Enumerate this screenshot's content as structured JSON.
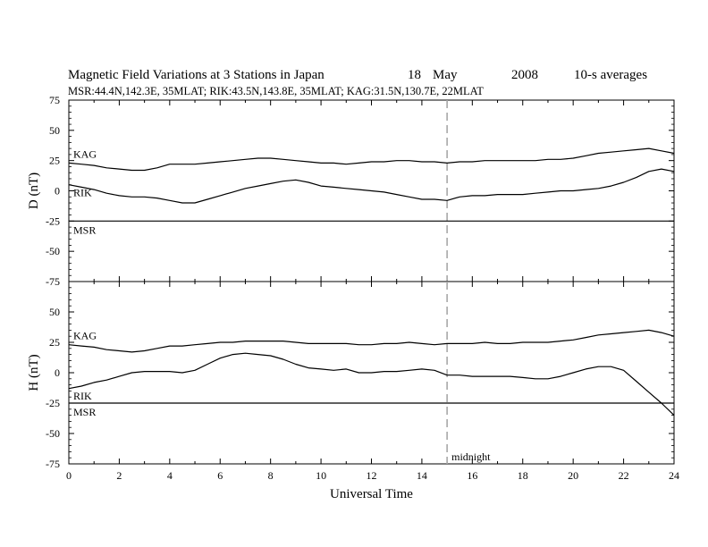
{
  "header": {
    "title": "Magnetic Field Variations at 3 Stations in Japan",
    "date_day": "18",
    "date_month": "May",
    "date_year": "2008",
    "averaging": "10-s averages",
    "stations_line": "MSR:44.4N,142.3E, 35MLAT;  RIK:43.5N,143.8E, 35MLAT;  KAG:31.5N,130.7E, 22MLAT"
  },
  "colors": {
    "line": "#000000",
    "midnight_marker": "#a8a8a8",
    "background": "#ffffff"
  },
  "chart_data": [
    {
      "type": "line",
      "panel": "top",
      "ylabel": "D (nT)",
      "xlabel": "",
      "xlim": [
        0,
        24
      ],
      "ylim": [
        -75,
        75
      ],
      "yticks": [
        "75",
        "50",
        "25",
        "0",
        "-25",
        "-50",
        "-75"
      ],
      "xticks": [],
      "marker_x": 15,
      "marker_label": "",
      "series": [
        {
          "name": "KAG",
          "x": [
            0,
            0.5,
            1,
            1.5,
            2,
            2.5,
            3,
            3.5,
            4,
            4.5,
            5,
            5.5,
            6,
            6.5,
            7,
            7.5,
            8,
            8.5,
            9,
            9.5,
            10,
            10.5,
            11,
            11.5,
            12,
            12.5,
            13,
            13.5,
            14,
            14.5,
            15,
            15.5,
            16,
            16.5,
            17,
            17.5,
            18,
            18.5,
            19,
            19.5,
            20,
            20.5,
            21,
            21.5,
            22,
            22.5,
            23,
            23.5,
            24
          ],
          "y": [
            23,
            22,
            21,
            19,
            18,
            17,
            17,
            19,
            22,
            22,
            22,
            23,
            24,
            25,
            26,
            27,
            27,
            26,
            25,
            24,
            23,
            23,
            22,
            23,
            24,
            24,
            25,
            25,
            24,
            24,
            23,
            24,
            24,
            25,
            25,
            25,
            25,
            25,
            26,
            26,
            27,
            29,
            31,
            32,
            33,
            34,
            35,
            33,
            31
          ]
        },
        {
          "name": "RIK",
          "x": [
            0,
            0.5,
            1,
            1.5,
            2,
            2.5,
            3,
            3.5,
            4,
            4.5,
            5,
            5.5,
            6,
            6.5,
            7,
            7.5,
            8,
            8.5,
            9,
            9.5,
            10,
            10.5,
            11,
            11.5,
            12,
            12.5,
            13,
            13.5,
            14,
            14.5,
            15,
            15.5,
            16,
            16.5,
            17,
            17.5,
            18,
            18.5,
            19,
            19.5,
            20,
            20.5,
            21,
            21.5,
            22,
            22.5,
            23,
            23.5,
            24
          ],
          "y": [
            5,
            3,
            1,
            -2,
            -4,
            -5,
            -5,
            -6,
            -8,
            -10,
            -10,
            -7,
            -4,
            -1,
            2,
            4,
            6,
            8,
            9,
            7,
            4,
            3,
            2,
            1,
            0,
            -1,
            -3,
            -5,
            -7,
            -7,
            -8,
            -5,
            -4,
            -4,
            -3,
            -3,
            -3,
            -2,
            -1,
            0,
            0,
            1,
            2,
            4,
            7,
            11,
            16,
            18,
            16
          ]
        },
        {
          "name": "MSR",
          "x": [
            0,
            24
          ],
          "y": [
            -25,
            -25
          ]
        }
      ]
    },
    {
      "type": "line",
      "panel": "bottom",
      "ylabel": "H (nT)",
      "xlabel": "Universal Time",
      "xlim": [
        0,
        24
      ],
      "ylim": [
        -75,
        75
      ],
      "yticks": [
        "50",
        "25",
        "0",
        "-25",
        "-50",
        "-75"
      ],
      "xticks": [
        "0",
        "2",
        "4",
        "6",
        "8",
        "10",
        "12",
        "14",
        "16",
        "18",
        "20",
        "22",
        "24"
      ],
      "marker_x": 15,
      "marker_label": "midnight",
      "series": [
        {
          "name": "KAG",
          "x": [
            0,
            0.5,
            1,
            1.5,
            2,
            2.5,
            3,
            3.5,
            4,
            4.5,
            5,
            5.5,
            6,
            6.5,
            7,
            7.5,
            8,
            8.5,
            9,
            9.5,
            10,
            10.5,
            11,
            11.5,
            12,
            12.5,
            13,
            13.5,
            14,
            14.5,
            15,
            15.5,
            16,
            16.5,
            17,
            17.5,
            18,
            18.5,
            19,
            19.5,
            20,
            20.5,
            21,
            21.5,
            22,
            22.5,
            23,
            23.5,
            24
          ],
          "y": [
            23,
            22,
            21,
            19,
            18,
            17,
            18,
            20,
            22,
            22,
            23,
            24,
            25,
            25,
            26,
            26,
            26,
            26,
            25,
            24,
            24,
            24,
            24,
            23,
            23,
            24,
            24,
            25,
            24,
            23,
            24,
            24,
            24,
            25,
            24,
            24,
            25,
            25,
            25,
            26,
            27,
            29,
            31,
            32,
            33,
            34,
            35,
            33,
            30
          ]
        },
        {
          "name": "RIK",
          "x": [
            0,
            0.5,
            1,
            1.5,
            2,
            2.5,
            3,
            3.5,
            4,
            4.5,
            5,
            5.5,
            6,
            6.5,
            7,
            7.5,
            8,
            8.5,
            9,
            9.5,
            10,
            10.5,
            11,
            11.5,
            12,
            12.5,
            13,
            13.5,
            14,
            14.5,
            15,
            15.5,
            16,
            16.5,
            17,
            17.5,
            18,
            18.5,
            19,
            19.5,
            20,
            20.5,
            21,
            21.5,
            22,
            22.5,
            23,
            23.5,
            24
          ],
          "y": [
            -13,
            -11,
            -8,
            -6,
            -3,
            0,
            1,
            1,
            1,
            0,
            2,
            7,
            12,
            15,
            16,
            15,
            14,
            11,
            7,
            4,
            3,
            2,
            3,
            0,
            0,
            1,
            1,
            2,
            3,
            2,
            -2,
            -2,
            -3,
            -3,
            -3,
            -3,
            -4,
            -5,
            -5,
            -3,
            0,
            3,
            5,
            5,
            2,
            -7,
            -16,
            -25,
            -35
          ]
        },
        {
          "name": "MSR",
          "x": [
            0,
            24
          ],
          "y": [
            -25,
            -25
          ]
        }
      ]
    }
  ]
}
